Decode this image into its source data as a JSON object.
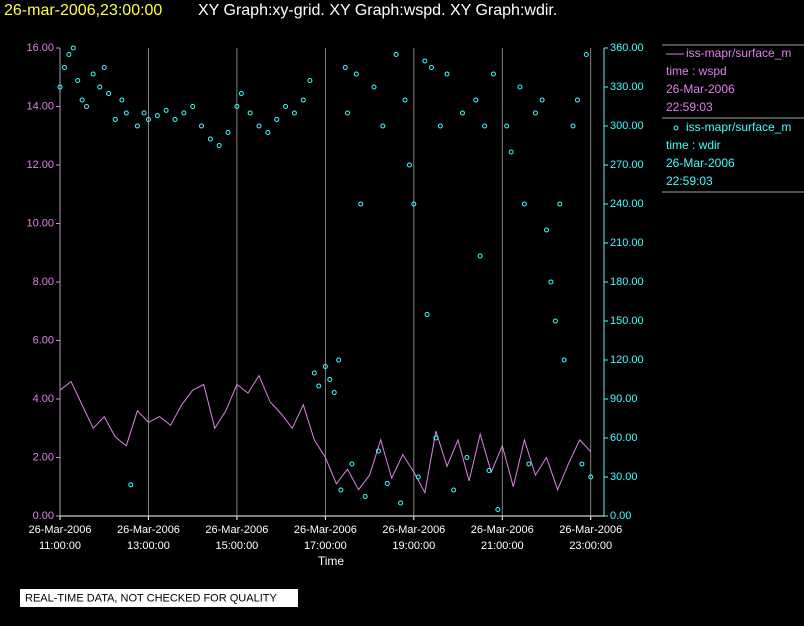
{
  "chart_data": {
    "type": "line",
    "title": {
      "time": "26-mar-2006,23:00:00",
      "graphs": "XY Graph:xy-grid.  XY Graph:wspd.  XY Graph:wdir."
    },
    "xlabel": "Time",
    "note": "REAL-TIME DATA, NOT CHECKED FOR QUALITY",
    "grid": true,
    "xlim": [
      11,
      23.3
    ],
    "xticks": [
      {
        "value": 11,
        "label": [
          "26-Mar-2006",
          "11:00:00"
        ]
      },
      {
        "value": 13,
        "label": [
          "26-Mar-2006",
          "13:00:00"
        ]
      },
      {
        "value": 15,
        "label": [
          "26-Mar-2006",
          "15:00:00"
        ]
      },
      {
        "value": 17,
        "label": [
          "26-Mar-2006",
          "17:00:00"
        ]
      },
      {
        "value": 19,
        "label": [
          "26-Mar-2006",
          "19:00:00"
        ]
      },
      {
        "value": 21,
        "label": [
          "26-Mar-2006",
          "21:00:00"
        ]
      },
      {
        "value": 23,
        "label": [
          "26-Mar-2006",
          "23:00:00"
        ]
      }
    ],
    "ylim": [
      0,
      16
    ],
    "yticks": [
      {
        "value": 0,
        "label": "0.00"
      },
      {
        "value": 2,
        "label": "2.00"
      },
      {
        "value": 4,
        "label": "4.00"
      },
      {
        "value": 6,
        "label": "6.00"
      },
      {
        "value": 8,
        "label": "8.00"
      },
      {
        "value": 10,
        "label": "10.00"
      },
      {
        "value": 12,
        "label": "12.00"
      },
      {
        "value": 14,
        "label": "14.00"
      },
      {
        "value": 16,
        "label": "16.00"
      }
    ],
    "y2lim": [
      0,
      360
    ],
    "y2ticks": [
      {
        "value": 0,
        "label": "0.00"
      },
      {
        "value": 30,
        "label": "30.00"
      },
      {
        "value": 60,
        "label": "60.00"
      },
      {
        "value": 90,
        "label": "90.00"
      },
      {
        "value": 120,
        "label": "120.00"
      },
      {
        "value": 150,
        "label": "150.00"
      },
      {
        "value": 180,
        "label": "180.00"
      },
      {
        "value": 210,
        "label": "210.00"
      },
      {
        "value": 240,
        "label": "240.00"
      },
      {
        "value": 270,
        "label": "270.00"
      },
      {
        "value": 300,
        "label": "300.00"
      },
      {
        "value": 330,
        "label": "330.00"
      },
      {
        "value": 360,
        "label": "360.00"
      }
    ],
    "series": [
      {
        "name": "iss-mapr/surface_m",
        "legend_lines": [
          "time : wspd",
          "26-Mar-2006",
          "22:59:03"
        ],
        "color": "#e080e8",
        "type": "line",
        "axis": "y",
        "x": [
          11,
          11.25,
          11.5,
          11.75,
          12,
          12.25,
          12.5,
          12.75,
          13,
          13.25,
          13.5,
          13.75,
          14,
          14.25,
          14.5,
          14.75,
          15,
          15.25,
          15.5,
          15.75,
          16,
          16.25,
          16.5,
          16.75,
          17,
          17.25,
          17.5,
          17.75,
          18,
          18.25,
          18.5,
          18.75,
          19,
          19.25,
          19.5,
          19.75,
          20,
          20.25,
          20.5,
          20.75,
          21,
          21.25,
          21.5,
          21.75,
          22,
          22.25,
          22.5,
          22.75,
          23
        ],
        "values": [
          4.3,
          4.6,
          3.8,
          3.0,
          3.4,
          2.7,
          2.4,
          3.6,
          3.2,
          3.4,
          3.1,
          3.8,
          4.3,
          4.5,
          3.0,
          3.6,
          4.5,
          4.2,
          4.8,
          3.9,
          3.5,
          3.0,
          3.8,
          2.6,
          2.0,
          1.1,
          1.6,
          0.9,
          1.4,
          2.6,
          1.3,
          2.1,
          1.5,
          0.8,
          2.9,
          1.7,
          2.6,
          1.2,
          2.8,
          1.5,
          2.4,
          1.0,
          2.6,
          1.4,
          2.0,
          0.9,
          1.8,
          2.6,
          2.2
        ]
      },
      {
        "name": "iss-mapr/surface_m",
        "legend_lines": [
          "time : wdir",
          "26-Mar-2006",
          "22:59:03"
        ],
        "color": "#40ffff",
        "type": "scatter",
        "axis": "y2",
        "x": [
          11.0,
          11.1,
          11.2,
          11.3,
          11.4,
          11.5,
          11.6,
          11.75,
          11.9,
          12.0,
          12.1,
          12.25,
          12.4,
          12.5,
          12.6,
          12.75,
          12.9,
          13.0,
          13.2,
          13.4,
          13.6,
          13.8,
          14.0,
          14.2,
          14.4,
          14.6,
          14.8,
          15.0,
          15.1,
          15.3,
          15.5,
          15.7,
          15.9,
          16.1,
          16.3,
          16.5,
          16.65,
          16.75,
          16.85,
          17.0,
          17.1,
          17.2,
          17.3,
          17.35,
          17.45,
          17.5,
          17.6,
          17.7,
          17.8,
          17.9,
          18.1,
          18.2,
          18.3,
          18.4,
          18.6,
          18.7,
          18.8,
          18.9,
          19.0,
          19.1,
          19.25,
          19.3,
          19.4,
          19.5,
          19.6,
          19.75,
          19.9,
          20.1,
          20.2,
          20.4,
          20.5,
          20.6,
          20.7,
          20.8,
          20.9,
          21.1,
          21.2,
          21.4,
          21.5,
          21.6,
          21.75,
          21.9,
          22.0,
          22.1,
          22.2,
          22.3,
          22.4,
          22.6,
          22.7,
          22.8,
          22.9,
          23.0
        ],
        "values": [
          330,
          345,
          355,
          360,
          335,
          320,
          315,
          340,
          330,
          345,
          325,
          305,
          320,
          310,
          24,
          300,
          310,
          305,
          308,
          312,
          305,
          310,
          315,
          300,
          290,
          285,
          295,
          315,
          325,
          310,
          300,
          295,
          305,
          315,
          310,
          320,
          335,
          110,
          100,
          115,
          105,
          95,
          120,
          20,
          345,
          310,
          40,
          340,
          240,
          15,
          330,
          50,
          300,
          25,
          355,
          10,
          320,
          270,
          240,
          30,
          350,
          155,
          345,
          60,
          300,
          340,
          20,
          310,
          45,
          320,
          200,
          300,
          35,
          340,
          5,
          300,
          280,
          330,
          240,
          40,
          310,
          320,
          220,
          180,
          150,
          240,
          120,
          300,
          320,
          40,
          355,
          30
        ]
      }
    ]
  }
}
